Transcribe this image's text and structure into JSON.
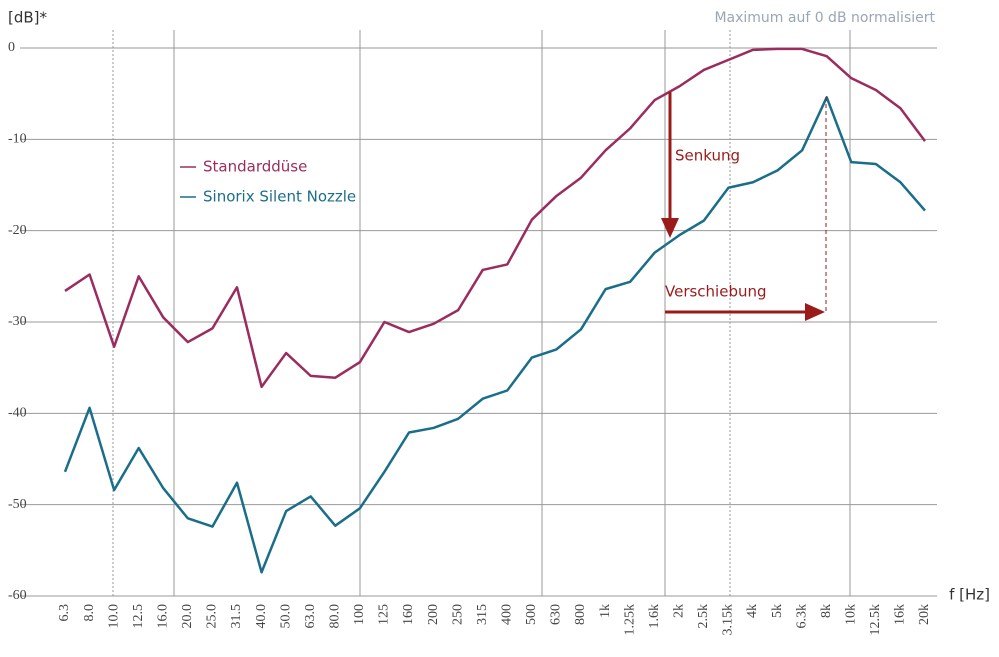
{
  "chart_data": {
    "type": "line",
    "y_label": "[dB]*",
    "x_label": "f [Hz]",
    "note": "Maximum auf 0 dB normalisiert",
    "annotations": [
      "Senkung",
      "Verschiebung"
    ],
    "categories": [
      "6.3",
      "8.0",
      "10.0",
      "12.5",
      "16.0",
      "20.0",
      "25.0",
      "31.5",
      "40.0",
      "50.0",
      "63.0",
      "80.0",
      "100",
      "125",
      "160",
      "200",
      "250",
      "315",
      "400",
      "500",
      "630",
      "800",
      "1k",
      "1.25k",
      "1.6k",
      "2k",
      "2.5k",
      "3.15k",
      "4k",
      "5k",
      "6.3k",
      "8k",
      "10k",
      "12.5k",
      "16k",
      "20k"
    ],
    "series": [
      {
        "name": "Standarddüse",
        "color": "#9b2c5e",
        "values": [
          -26.6,
          -24.8,
          -32.7,
          -25,
          -29.5,
          -32.2,
          -30.7,
          -26.2,
          -37.1,
          -33.4,
          -35.9,
          -36.1,
          -34.4,
          -30,
          -31.1,
          -30.2,
          -28.7,
          -24.3,
          -23.7,
          -18.8,
          -16.2,
          -14.2,
          -11.2,
          -8.8,
          -5.7,
          -4.2,
          -2.4,
          -1.3,
          -0.2,
          -0.1,
          -0.1,
          -0.9,
          -3.3,
          -4.6,
          -6.6,
          -10.2
        ]
      },
      {
        "name": "Sinorix Silent Nozzle",
        "color": "#1a6e8a",
        "values": [
          -46.4,
          -39.4,
          -48.4,
          -43.8,
          -48.2,
          -51.5,
          -52.4,
          -47.6,
          -57.4,
          -50.7,
          -49.1,
          -52.3,
          -50.4,
          -46.4,
          -42.1,
          -41.6,
          -40.6,
          -38.4,
          -37.5,
          -33.9,
          -33,
          -30.8,
          -26.4,
          -25.6,
          -22.4,
          -20.5,
          -18.9,
          -15.3,
          -14.7,
          -13.4,
          -11.2,
          -5.4,
          -12.5,
          -12.7,
          -14.7,
          -17.8
        ]
      }
    ],
    "ylim": [
      -60,
      0
    ],
    "yticks": [
      0,
      -10,
      -20,
      -30,
      -40,
      -50,
      -60
    ],
    "grid": true
  }
}
